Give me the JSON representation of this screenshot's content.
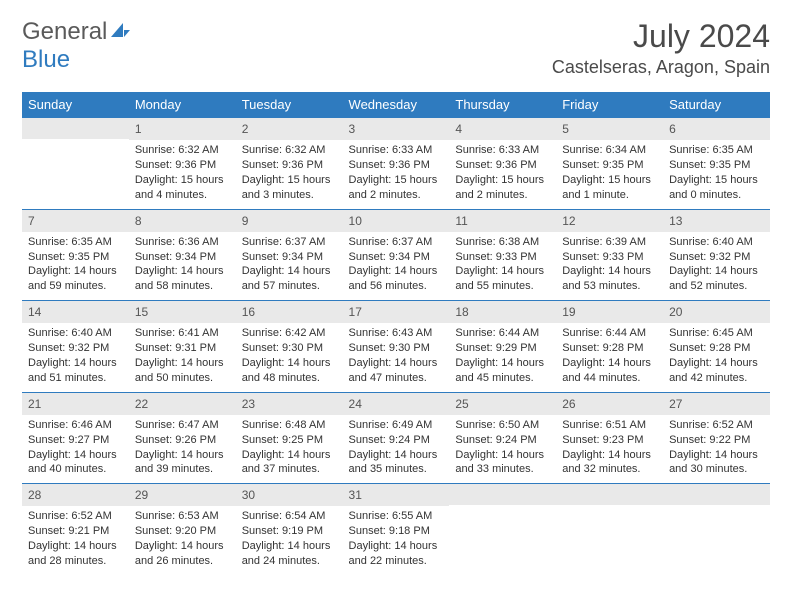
{
  "logo": {
    "text1": "General",
    "text2": "Blue"
  },
  "title": "July 2024",
  "location": "Castelseras, Aragon, Spain",
  "colors": {
    "header_bg": "#2f7bbf",
    "header_text": "#ffffff",
    "daynum_bg": "#e9e9e9",
    "border": "#2f7bbf",
    "body_text": "#333333",
    "title_text": "#4a4a4a"
  },
  "weekdays": [
    "Sunday",
    "Monday",
    "Tuesday",
    "Wednesday",
    "Thursday",
    "Friday",
    "Saturday"
  ],
  "weeks": [
    [
      null,
      {
        "n": "1",
        "sr": "Sunrise: 6:32 AM",
        "ss": "Sunset: 9:36 PM",
        "dl": "Daylight: 15 hours and 4 minutes."
      },
      {
        "n": "2",
        "sr": "Sunrise: 6:32 AM",
        "ss": "Sunset: 9:36 PM",
        "dl": "Daylight: 15 hours and 3 minutes."
      },
      {
        "n": "3",
        "sr": "Sunrise: 6:33 AM",
        "ss": "Sunset: 9:36 PM",
        "dl": "Daylight: 15 hours and 2 minutes."
      },
      {
        "n": "4",
        "sr": "Sunrise: 6:33 AM",
        "ss": "Sunset: 9:36 PM",
        "dl": "Daylight: 15 hours and 2 minutes."
      },
      {
        "n": "5",
        "sr": "Sunrise: 6:34 AM",
        "ss": "Sunset: 9:35 PM",
        "dl": "Daylight: 15 hours and 1 minute."
      },
      {
        "n": "6",
        "sr": "Sunrise: 6:35 AM",
        "ss": "Sunset: 9:35 PM",
        "dl": "Daylight: 15 hours and 0 minutes."
      }
    ],
    [
      {
        "n": "7",
        "sr": "Sunrise: 6:35 AM",
        "ss": "Sunset: 9:35 PM",
        "dl": "Daylight: 14 hours and 59 minutes."
      },
      {
        "n": "8",
        "sr": "Sunrise: 6:36 AM",
        "ss": "Sunset: 9:34 PM",
        "dl": "Daylight: 14 hours and 58 minutes."
      },
      {
        "n": "9",
        "sr": "Sunrise: 6:37 AM",
        "ss": "Sunset: 9:34 PM",
        "dl": "Daylight: 14 hours and 57 minutes."
      },
      {
        "n": "10",
        "sr": "Sunrise: 6:37 AM",
        "ss": "Sunset: 9:34 PM",
        "dl": "Daylight: 14 hours and 56 minutes."
      },
      {
        "n": "11",
        "sr": "Sunrise: 6:38 AM",
        "ss": "Sunset: 9:33 PM",
        "dl": "Daylight: 14 hours and 55 minutes."
      },
      {
        "n": "12",
        "sr": "Sunrise: 6:39 AM",
        "ss": "Sunset: 9:33 PM",
        "dl": "Daylight: 14 hours and 53 minutes."
      },
      {
        "n": "13",
        "sr": "Sunrise: 6:40 AM",
        "ss": "Sunset: 9:32 PM",
        "dl": "Daylight: 14 hours and 52 minutes."
      }
    ],
    [
      {
        "n": "14",
        "sr": "Sunrise: 6:40 AM",
        "ss": "Sunset: 9:32 PM",
        "dl": "Daylight: 14 hours and 51 minutes."
      },
      {
        "n": "15",
        "sr": "Sunrise: 6:41 AM",
        "ss": "Sunset: 9:31 PM",
        "dl": "Daylight: 14 hours and 50 minutes."
      },
      {
        "n": "16",
        "sr": "Sunrise: 6:42 AM",
        "ss": "Sunset: 9:30 PM",
        "dl": "Daylight: 14 hours and 48 minutes."
      },
      {
        "n": "17",
        "sr": "Sunrise: 6:43 AM",
        "ss": "Sunset: 9:30 PM",
        "dl": "Daylight: 14 hours and 47 minutes."
      },
      {
        "n": "18",
        "sr": "Sunrise: 6:44 AM",
        "ss": "Sunset: 9:29 PM",
        "dl": "Daylight: 14 hours and 45 minutes."
      },
      {
        "n": "19",
        "sr": "Sunrise: 6:44 AM",
        "ss": "Sunset: 9:28 PM",
        "dl": "Daylight: 14 hours and 44 minutes."
      },
      {
        "n": "20",
        "sr": "Sunrise: 6:45 AM",
        "ss": "Sunset: 9:28 PM",
        "dl": "Daylight: 14 hours and 42 minutes."
      }
    ],
    [
      {
        "n": "21",
        "sr": "Sunrise: 6:46 AM",
        "ss": "Sunset: 9:27 PM",
        "dl": "Daylight: 14 hours and 40 minutes."
      },
      {
        "n": "22",
        "sr": "Sunrise: 6:47 AM",
        "ss": "Sunset: 9:26 PM",
        "dl": "Daylight: 14 hours and 39 minutes."
      },
      {
        "n": "23",
        "sr": "Sunrise: 6:48 AM",
        "ss": "Sunset: 9:25 PM",
        "dl": "Daylight: 14 hours and 37 minutes."
      },
      {
        "n": "24",
        "sr": "Sunrise: 6:49 AM",
        "ss": "Sunset: 9:24 PM",
        "dl": "Daylight: 14 hours and 35 minutes."
      },
      {
        "n": "25",
        "sr": "Sunrise: 6:50 AM",
        "ss": "Sunset: 9:24 PM",
        "dl": "Daylight: 14 hours and 33 minutes."
      },
      {
        "n": "26",
        "sr": "Sunrise: 6:51 AM",
        "ss": "Sunset: 9:23 PM",
        "dl": "Daylight: 14 hours and 32 minutes."
      },
      {
        "n": "27",
        "sr": "Sunrise: 6:52 AM",
        "ss": "Sunset: 9:22 PM",
        "dl": "Daylight: 14 hours and 30 minutes."
      }
    ],
    [
      {
        "n": "28",
        "sr": "Sunrise: 6:52 AM",
        "ss": "Sunset: 9:21 PM",
        "dl": "Daylight: 14 hours and 28 minutes."
      },
      {
        "n": "29",
        "sr": "Sunrise: 6:53 AM",
        "ss": "Sunset: 9:20 PM",
        "dl": "Daylight: 14 hours and 26 minutes."
      },
      {
        "n": "30",
        "sr": "Sunrise: 6:54 AM",
        "ss": "Sunset: 9:19 PM",
        "dl": "Daylight: 14 hours and 24 minutes."
      },
      {
        "n": "31",
        "sr": "Sunrise: 6:55 AM",
        "ss": "Sunset: 9:18 PM",
        "dl": "Daylight: 14 hours and 22 minutes."
      },
      null,
      null,
      null
    ]
  ]
}
